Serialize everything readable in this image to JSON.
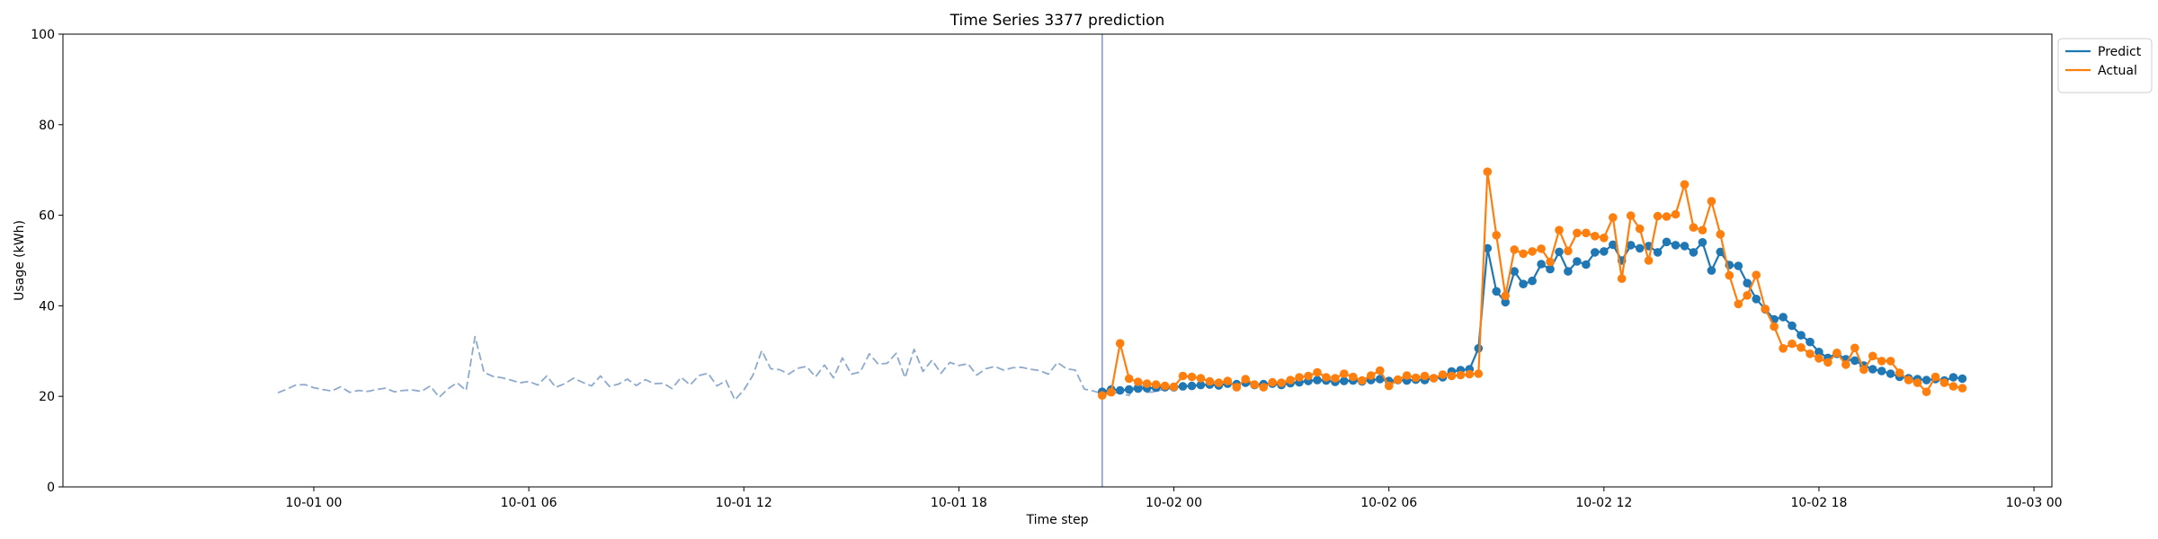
{
  "chart_data": {
    "type": "line",
    "title": "Time Series 3377 prediction",
    "xlabel": "Time step",
    "ylabel": "Usage (kWh)",
    "ylim": [
      0,
      100
    ],
    "yticks": [
      0,
      20,
      40,
      60,
      80,
      100
    ],
    "xlim": [
      "2024-09-30 17:00",
      "2024-10-03 00:30"
    ],
    "xtick_values": [
      "2024-10-01 00:00",
      "2024-10-01 06:00",
      "2024-10-01 12:00",
      "2024-10-01 18:00",
      "2024-10-02 00:00",
      "2024-10-02 06:00",
      "2024-10-02 12:00",
      "2024-10-02 18:00",
      "2024-10-03 00:00"
    ],
    "xtick_labels": [
      "10-01 00",
      "10-01 06",
      "10-01 12",
      "10-01 18",
      "10-02 00",
      "10-02 06",
      "10-02 12",
      "10-02 18",
      "10-03 00"
    ],
    "vline": "2024-10-01 22:00",
    "grid": false,
    "legend_position": "top-right, outside plot",
    "series": [
      {
        "name": "",
        "style": "dashed",
        "color": "#8eaacc",
        "markers": false,
        "start": "2024-09-30 23:00",
        "step_minutes": 15,
        "values": [
          20.8,
          21.6,
          22.5,
          22.6,
          21.9,
          21.5,
          21.2,
          22.1,
          20.9,
          21.3,
          21.1,
          21.5,
          21.8,
          21.0,
          21.3,
          21.4,
          21.1,
          22.3,
          19.8,
          21.7,
          23.0,
          21.3,
          33.2,
          25.3,
          24.4,
          24.1,
          23.6,
          23.0,
          23.3,
          22.5,
          24.5,
          22.0,
          22.8,
          24.0,
          23.1,
          22.3,
          24.5,
          22.2,
          22.7,
          23.8,
          22.4,
          23.7,
          22.8,
          22.9,
          21.7,
          24.2,
          22.5,
          24.6,
          25.1,
          22.3,
          23.5,
          19.2,
          21.4,
          24.6,
          30.1,
          26.1,
          25.9,
          24.9,
          26.2,
          26.6,
          24.3,
          26.9,
          24.1,
          28.5,
          24.9,
          25.4,
          29.4,
          27.1,
          27.3,
          29.5,
          24.1,
          30.4,
          25.5,
          28.0,
          25.1,
          27.5,
          26.8,
          27.2,
          24.7,
          26.1,
          26.6,
          25.8,
          26.3,
          26.4,
          26.0,
          25.7,
          24.9,
          27.5,
          26.1,
          25.8,
          21.6,
          21.2,
          20.6,
          21.0,
          20.7,
          20.2,
          23.5,
          20.9,
          21.0,
          21.8,
          21.5
        ]
      },
      {
        "name": "Predict",
        "color": "#1f77b4",
        "markers": true,
        "start": "2024-10-01 22:00",
        "step_minutes": 15,
        "values": [
          21.0,
          21.5,
          21.3,
          21.5,
          21.7,
          21.8,
          21.9,
          22.0,
          22.0,
          22.2,
          22.3,
          22.5,
          22.6,
          22.4,
          22.8,
          22.7,
          23.0,
          22.5,
          22.7,
          22.8,
          22.5,
          22.9,
          23.1,
          23.4,
          23.6,
          23.5,
          23.2,
          23.4,
          23.5,
          23.3,
          23.6,
          23.8,
          23.4,
          23.6,
          23.5,
          23.7,
          23.6,
          24.0,
          24.2,
          25.5,
          25.8,
          26.0,
          30.6,
          52.7,
          43.2,
          40.8,
          47.6,
          44.8,
          45.5,
          49.2,
          48.1,
          51.9,
          47.6,
          49.8,
          49.1,
          51.8,
          52.0,
          53.5,
          50.0,
          53.4,
          52.7,
          53.2,
          51.8,
          54.1,
          53.4,
          53.2,
          51.8,
          54.0,
          47.8,
          51.9,
          49.0,
          48.8,
          45.0,
          41.5,
          39.2,
          37.0,
          37.5,
          35.6,
          33.5,
          32.0,
          29.8,
          28.5,
          29.4,
          28.2,
          27.9,
          26.8,
          26.0,
          25.6,
          25.0,
          24.3,
          24.0,
          23.8,
          23.6,
          23.8,
          23.5,
          24.2,
          23.9
        ]
      },
      {
        "name": "Actual",
        "color": "#ff7f0e",
        "markers": true,
        "start": "2024-10-01 22:00",
        "step_minutes": 15,
        "values": [
          20.2,
          20.9,
          31.7,
          23.9,
          23.2,
          22.8,
          22.6,
          22.3,
          22.1,
          24.5,
          24.3,
          24.0,
          23.3,
          23.0,
          23.4,
          22.0,
          23.8,
          22.6,
          22.0,
          23.1,
          23.0,
          23.6,
          24.2,
          24.5,
          25.3,
          24.2,
          24.0,
          25.0,
          24.3,
          23.5,
          24.6,
          25.7,
          22.3,
          23.7,
          24.6,
          24.1,
          24.5,
          24.0,
          24.8,
          24.5,
          24.7,
          24.9,
          25.0,
          69.6,
          55.6,
          42.2,
          52.4,
          51.5,
          52.0,
          52.6,
          49.7,
          56.7,
          52.1,
          56.1,
          56.1,
          55.4,
          55.0,
          59.5,
          46.0,
          59.9,
          57.0,
          50.0,
          59.8,
          59.7,
          60.2,
          66.8,
          57.3,
          56.7,
          63.1,
          55.8,
          46.7,
          40.4,
          42.3,
          46.8,
          39.3,
          35.4,
          30.6,
          31.6,
          30.8,
          29.4,
          28.4,
          27.5,
          29.6,
          27.0,
          30.7,
          25.9,
          28.9,
          27.8,
          27.8,
          25.2,
          23.6,
          23.0,
          21.0,
          24.3,
          23.0,
          22.2,
          21.8
        ]
      }
    ]
  }
}
